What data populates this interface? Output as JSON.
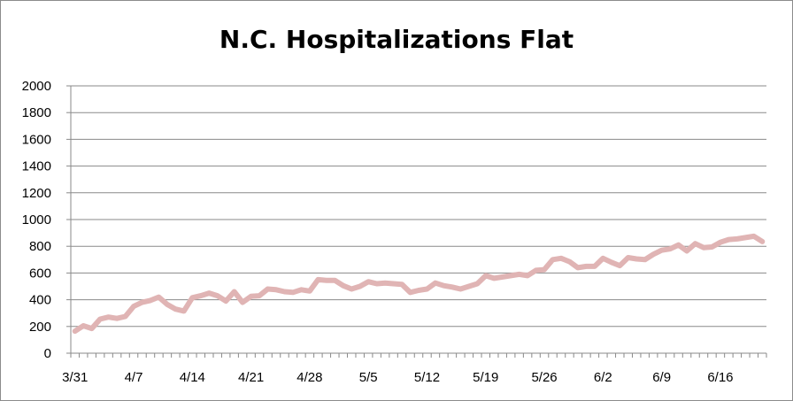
{
  "chart_data": {
    "type": "line",
    "title": "N.C. Hospitalizations Flat",
    "xlabel": "",
    "ylabel": "",
    "ylim": [
      0,
      2000
    ],
    "y_ticks": [
      0,
      200,
      400,
      600,
      800,
      1000,
      1200,
      1400,
      1600,
      1800,
      2000
    ],
    "x_tick_labels": [
      "3/31",
      "4/7",
      "4/14",
      "4/21",
      "4/28",
      "5/5",
      "5/12",
      "5/19",
      "5/26",
      "6/2",
      "6/9",
      "6/16"
    ],
    "grid": "horizontal",
    "legend": "none",
    "series": [
      {
        "color": "#e0b4b4",
        "x": [
          "3/31",
          "4/1",
          "4/2",
          "4/3",
          "4/4",
          "4/5",
          "4/6",
          "4/7",
          "4/8",
          "4/9",
          "4/10",
          "4/11",
          "4/12",
          "4/13",
          "4/14",
          "4/15",
          "4/16",
          "4/17",
          "4/18",
          "4/19",
          "4/20",
          "4/21",
          "4/22",
          "4/23",
          "4/24",
          "4/25",
          "4/26",
          "4/27",
          "4/28",
          "4/29",
          "4/30",
          "5/1",
          "5/2",
          "5/3",
          "5/4",
          "5/5",
          "5/6",
          "5/7",
          "5/8",
          "5/9",
          "5/10",
          "5/11",
          "5/12",
          "5/13",
          "5/14",
          "5/15",
          "5/16",
          "5/17",
          "5/18",
          "5/19",
          "5/20",
          "5/21",
          "5/22",
          "5/23",
          "5/24",
          "5/25",
          "5/26",
          "5/27",
          "5/28",
          "5/29",
          "5/30",
          "5/31",
          "6/1",
          "6/2",
          "6/3",
          "6/4",
          "6/5",
          "6/6",
          "6/7",
          "6/8",
          "6/9",
          "6/10",
          "6/11",
          "6/12",
          "6/13",
          "6/14",
          "6/15",
          "6/16",
          "6/17",
          "6/18",
          "6/19",
          "6/20",
          "6/21"
        ],
        "values": [
          165,
          205,
          185,
          255,
          270,
          260,
          275,
          350,
          380,
          395,
          420,
          365,
          330,
          315,
          415,
          430,
          450,
          430,
          390,
          460,
          380,
          425,
          430,
          480,
          475,
          460,
          455,
          475,
          465,
          550,
          545,
          545,
          505,
          480,
          500,
          535,
          520,
          525,
          520,
          515,
          455,
          470,
          480,
          525,
          505,
          495,
          480,
          500,
          520,
          580,
          560,
          570,
          580,
          590,
          580,
          620,
          625,
          700,
          710,
          685,
          640,
          650,
          650,
          710,
          680,
          655,
          715,
          705,
          700,
          740,
          770,
          780,
          810,
          765,
          820,
          790,
          795,
          830,
          850,
          855,
          865,
          875,
          835
        ]
      }
    ]
  }
}
